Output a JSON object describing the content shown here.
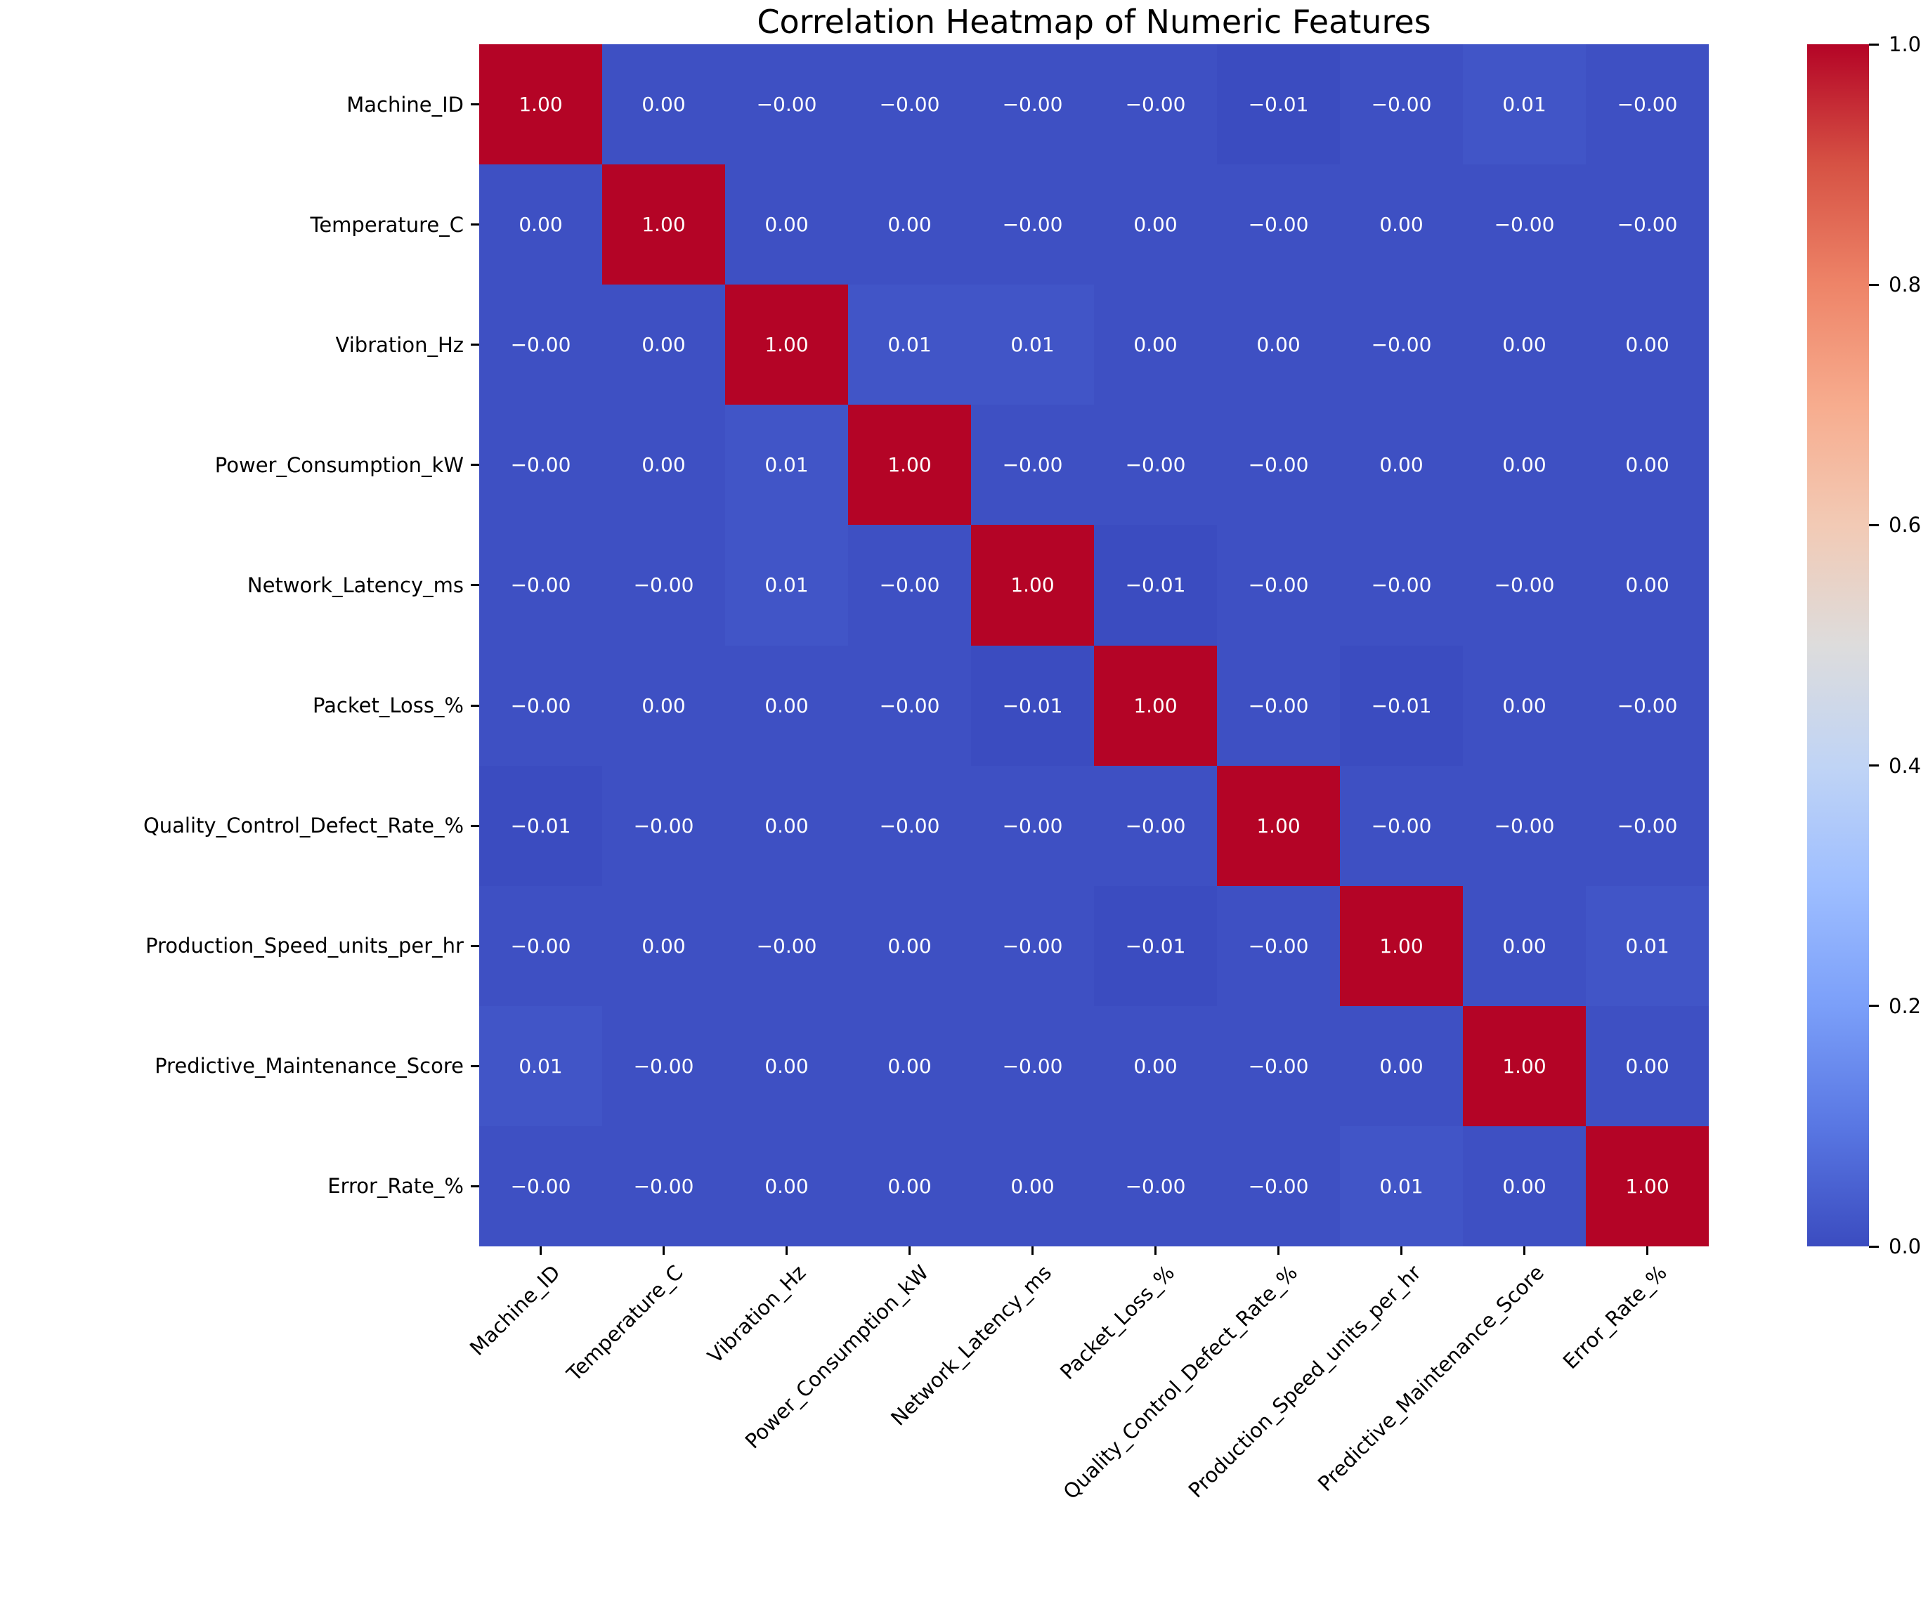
{
  "title": "Correlation Heatmap of Numeric Features",
  "chart_data": {
    "type": "heatmap",
    "title": "Correlation Heatmap of Numeric Features",
    "features": [
      "Machine_ID",
      "Temperature_C",
      "Vibration_Hz",
      "Power_Consumption_kW",
      "Network_Latency_ms",
      "Packet_Loss_%",
      "Quality_Control_Defect_Rate_%",
      "Production_Speed_units_per_hr",
      "Predictive_Maintenance_Score",
      "Error_Rate_%"
    ],
    "cell_labels": [
      [
        "1.00",
        "0.00",
        "−0.00",
        "−0.00",
        "−0.00",
        "−0.00",
        "−0.01",
        "−0.00",
        "0.01",
        "−0.00"
      ],
      [
        "0.00",
        "1.00",
        "0.00",
        "0.00",
        "−0.00",
        "0.00",
        "−0.00",
        "0.00",
        "−0.00",
        "−0.00"
      ],
      [
        "−0.00",
        "0.00",
        "1.00",
        "0.01",
        "0.01",
        "0.00",
        "0.00",
        "−0.00",
        "0.00",
        "0.00"
      ],
      [
        "−0.00",
        "0.00",
        "0.01",
        "1.00",
        "−0.00",
        "−0.00",
        "−0.00",
        "0.00",
        "0.00",
        "0.00"
      ],
      [
        "−0.00",
        "−0.00",
        "0.01",
        "−0.00",
        "1.00",
        "−0.01",
        "−0.00",
        "−0.00",
        "−0.00",
        "0.00"
      ],
      [
        "−0.00",
        "0.00",
        "0.00",
        "−0.00",
        "−0.01",
        "1.00",
        "−0.00",
        "−0.01",
        "0.00",
        "−0.00"
      ],
      [
        "−0.01",
        "−0.00",
        "0.00",
        "−0.00",
        "−0.00",
        "−0.00",
        "1.00",
        "−0.00",
        "−0.00",
        "−0.00"
      ],
      [
        "−0.00",
        "0.00",
        "−0.00",
        "0.00",
        "−0.00",
        "−0.01",
        "−0.00",
        "1.00",
        "0.00",
        "0.01"
      ],
      [
        "0.01",
        "−0.00",
        "0.00",
        "0.00",
        "−0.00",
        "0.00",
        "−0.00",
        "0.00",
        "1.00",
        "0.00"
      ],
      [
        "−0.00",
        "−0.00",
        "0.00",
        "0.00",
        "0.00",
        "−0.00",
        "−0.00",
        "0.01",
        "0.00",
        "1.00"
      ]
    ],
    "values": [
      [
        1.0,
        0.0,
        -0.0,
        -0.0,
        -0.0,
        -0.0,
        -0.01,
        -0.0,
        0.01,
        -0.0
      ],
      [
        0.0,
        1.0,
        0.0,
        0.0,
        -0.0,
        0.0,
        -0.0,
        0.0,
        -0.0,
        -0.0
      ],
      [
        -0.0,
        0.0,
        1.0,
        0.01,
        0.01,
        0.0,
        0.0,
        -0.0,
        0.0,
        0.0
      ],
      [
        -0.0,
        0.0,
        0.01,
        1.0,
        -0.0,
        -0.0,
        -0.0,
        0.0,
        0.0,
        0.0
      ],
      [
        -0.0,
        -0.0,
        0.01,
        -0.0,
        1.0,
        -0.01,
        -0.0,
        -0.0,
        -0.0,
        0.0
      ],
      [
        -0.0,
        0.0,
        0.0,
        -0.0,
        -0.01,
        1.0,
        -0.0,
        -0.01,
        0.0,
        -0.0
      ],
      [
        -0.01,
        -0.0,
        0.0,
        -0.0,
        -0.0,
        -0.0,
        1.0,
        -0.0,
        -0.0,
        -0.0
      ],
      [
        -0.0,
        0.0,
        -0.0,
        0.0,
        -0.0,
        -0.01,
        -0.0,
        1.0,
        0.0,
        0.01
      ],
      [
        0.01,
        -0.0,
        0.0,
        0.0,
        -0.0,
        0.0,
        -0.0,
        0.0,
        1.0,
        0.0
      ],
      [
        -0.0,
        -0.0,
        0.0,
        0.0,
        0.0,
        -0.0,
        -0.0,
        0.01,
        0.0,
        1.0
      ]
    ],
    "annotation_text_color": "#ffffff",
    "colormap": {
      "name": "coolwarm",
      "vmin": -0.01,
      "vmax": 1.0,
      "low_color": "#3b4cc0",
      "mid_color": "#dddcdc",
      "high_color": "#b40426",
      "stops": [
        [
          0.0,
          [
            59,
            76,
            192
          ]
        ],
        [
          0.1,
          [
            89,
            119,
            227
          ]
        ],
        [
          0.2,
          [
            123,
            159,
            249
          ]
        ],
        [
          0.3,
          [
            158,
            190,
            255
          ]
        ],
        [
          0.4,
          [
            192,
            212,
            245
          ]
        ],
        [
          0.5,
          [
            221,
            220,
            220
          ]
        ],
        [
          0.6,
          [
            242,
            202,
            181
          ]
        ],
        [
          0.7,
          [
            247,
            172,
            142
          ]
        ],
        [
          0.8,
          [
            238,
            132,
            104
          ]
        ],
        [
          0.9,
          [
            214,
            82,
            68
          ]
        ],
        [
          1.0,
          [
            180,
            4,
            38
          ]
        ]
      ]
    },
    "colorbar": {
      "position": "right",
      "tick_labels": [
        "1.0",
        "0.8",
        "0.6",
        "0.4",
        "0.2",
        "0.0"
      ],
      "tick_values": [
        1.0,
        0.8,
        0.6,
        0.4,
        0.2,
        0.0
      ]
    },
    "grid": false,
    "x_tick_rotation_deg": 45
  },
  "layout_colors": {
    "background": "#ffffff",
    "text": "#000000"
  }
}
